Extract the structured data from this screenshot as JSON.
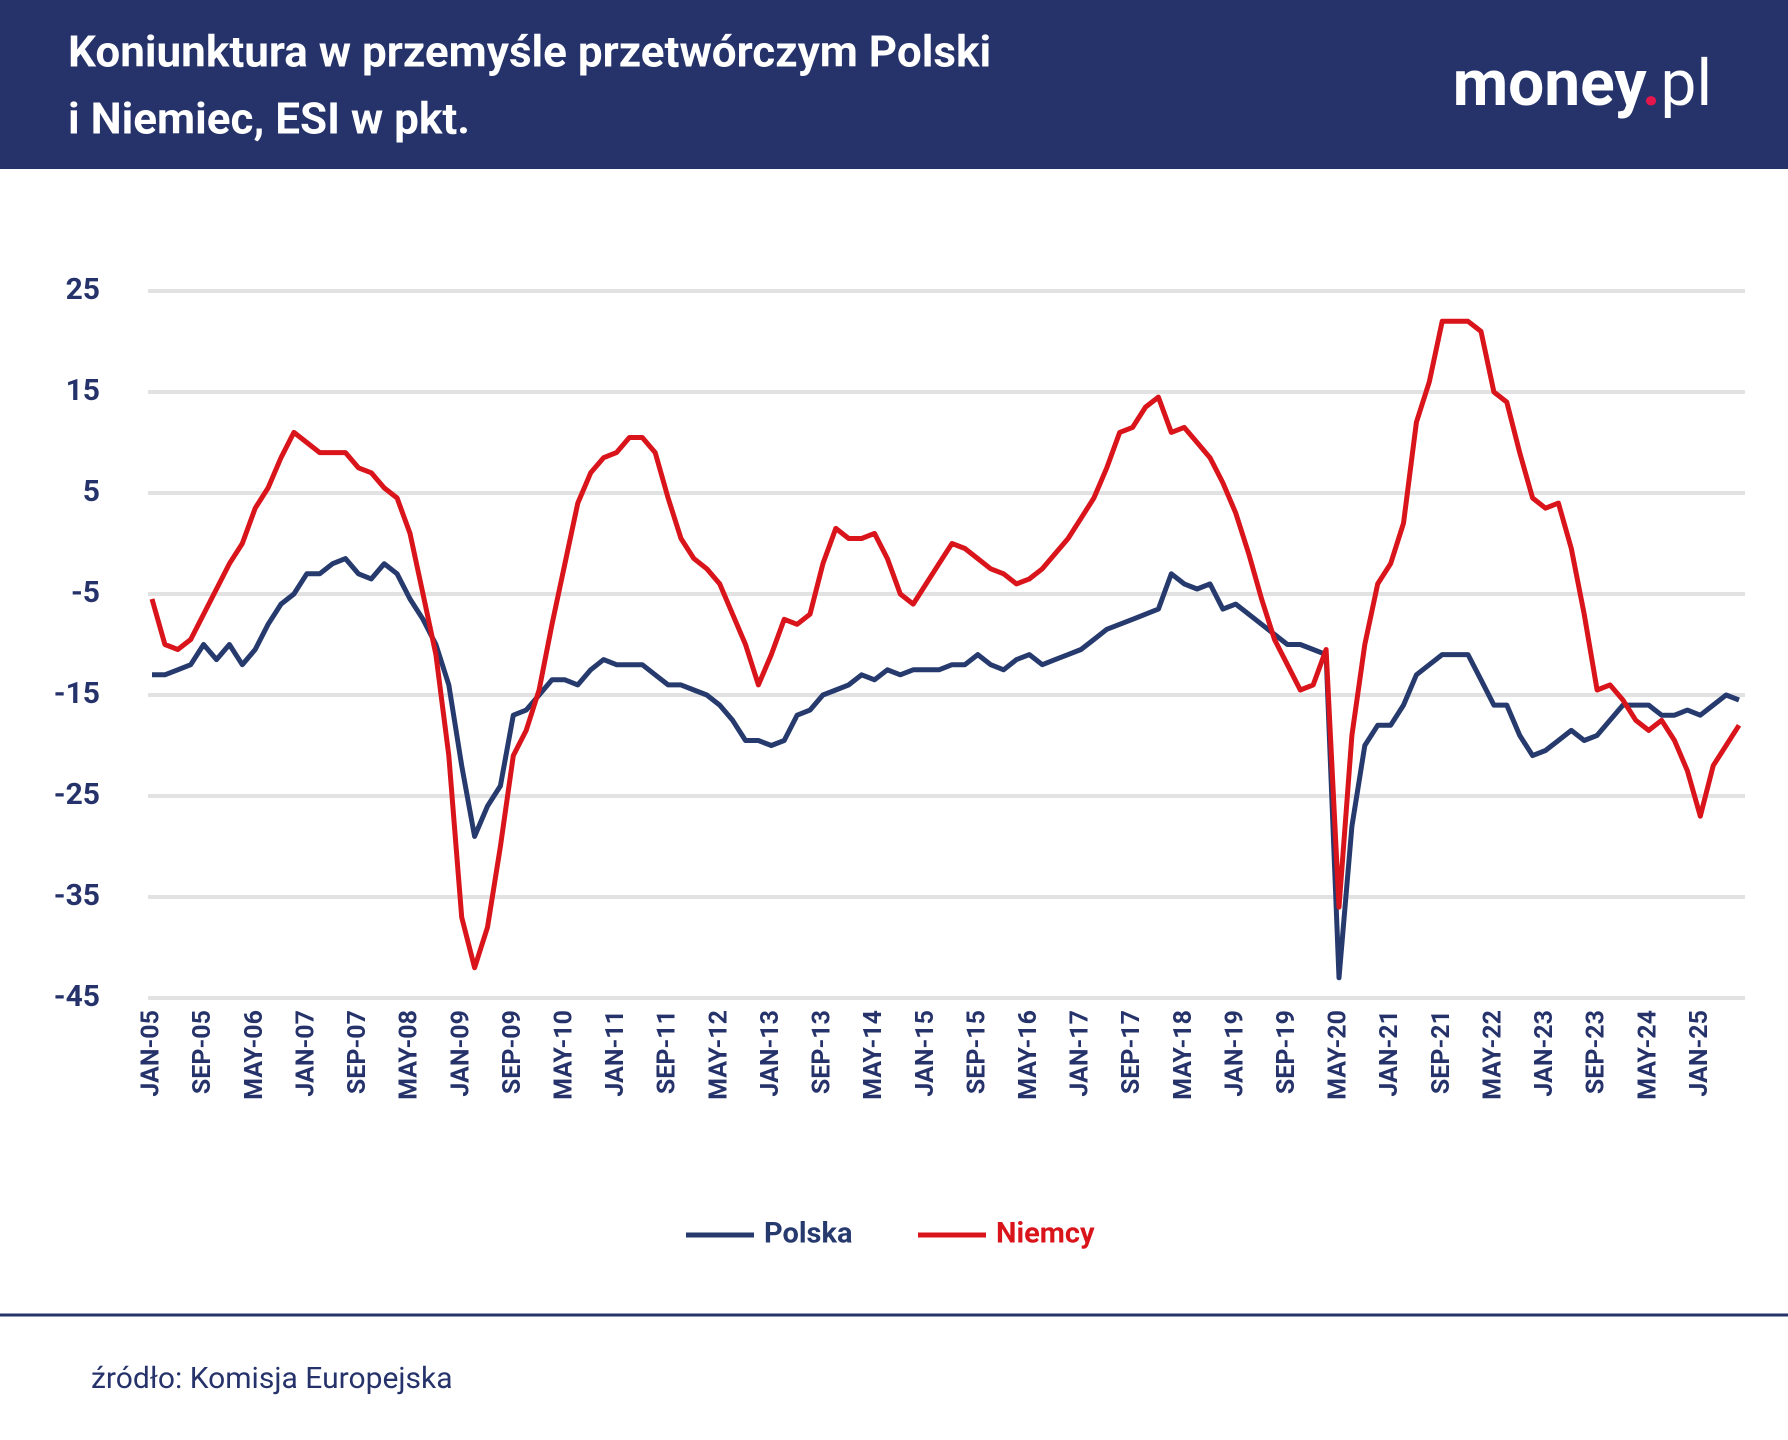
{
  "chart_data": {
    "type": "line",
    "title": [
      "Koniunktura w przemyśle przetwórczym Polski",
      "i Niemiec, ESI w pkt."
    ],
    "logo": [
      "money",
      ".",
      "pl"
    ],
    "source": "źródło: Komisja Europejska",
    "categories": [
      "JAN-05",
      null,
      null,
      null,
      "SEP-05",
      null,
      null,
      null,
      "MAY-06",
      null,
      null,
      null,
      "JAN-07",
      null,
      null,
      null,
      "SEP-07",
      null,
      null,
      null,
      "MAY-08",
      null,
      null,
      null,
      "JAN-09",
      null,
      null,
      null,
      "SEP-09",
      null,
      null,
      null,
      "MAY-10",
      null,
      null,
      null,
      "JAN-11",
      null,
      null,
      null,
      "SEP-11",
      null,
      null,
      null,
      "MAY-12",
      null,
      null,
      null,
      "JAN-13",
      null,
      null,
      null,
      "SEP-13",
      null,
      null,
      null,
      "MAY-14",
      null,
      null,
      null,
      "JAN-15",
      null,
      null,
      null,
      "SEP-15",
      null,
      null,
      null,
      "MAY-16",
      null,
      null,
      null,
      "JAN-17",
      null,
      null,
      null,
      "SEP-17",
      null,
      null,
      null,
      "MAY-18",
      null,
      null,
      null,
      "JAN-19",
      null,
      null,
      null,
      "SEP-19",
      null,
      null,
      null,
      "MAY-20",
      null,
      null,
      null,
      "JAN-21",
      null,
      null,
      null,
      "SEP-21",
      null,
      null,
      null,
      "MAY-22",
      null,
      null,
      null,
      "JAN-23",
      null,
      null,
      null,
      "SEP-23",
      null,
      null,
      null,
      "MAY-24",
      null,
      null,
      null,
      "JAN-25",
      null,
      null,
      null
    ],
    "series": [
      {
        "name": "Polska",
        "color": "#263a6e",
        "values": [
          -13,
          -13,
          -12.5,
          -12,
          -10,
          -11.5,
          -10,
          -12,
          -10.5,
          -8,
          -6,
          -5,
          -3,
          -3,
          -2,
          -1.5,
          -3,
          -3.5,
          -2,
          -3,
          -5.5,
          -7.5,
          -10,
          -14,
          -22,
          -29,
          -26,
          -24,
          -17,
          -16.5,
          -15,
          -13.5,
          -13.5,
          -14,
          -12.5,
          -11.5,
          -12,
          -12,
          -12,
          -13,
          -14,
          -14,
          -14.5,
          -15,
          -16,
          -17.5,
          -19.5,
          -19.5,
          -20,
          -19.5,
          -17,
          -16.5,
          -15,
          -14.5,
          -14,
          -13,
          -13.5,
          -12.5,
          -13,
          -12.5,
          -12.5,
          -12.5,
          -12,
          -12,
          -11,
          -12,
          -12.5,
          -11.5,
          -11,
          -12,
          -11.5,
          -11,
          -10.5,
          -9.5,
          -8.5,
          -8,
          -7.5,
          -7,
          -6.5,
          -3,
          -4,
          -4.5,
          -4,
          -6.5,
          -6,
          -7,
          -8,
          -9,
          -10,
          -10,
          -10.5,
          -11,
          -43,
          -28,
          -20,
          -18,
          -18,
          -16,
          -13,
          -12,
          -11,
          -11,
          -11,
          -13.5,
          -16,
          -16,
          -19,
          -21,
          -20.5,
          -19.5,
          -18.5,
          -19.5,
          -19,
          -17.5,
          -16,
          -16,
          -16,
          -17,
          -17,
          -16.5,
          -17,
          -16,
          -15,
          -15.5
        ]
      },
      {
        "name": "Niemcy",
        "color": "#d9141b",
        "values": [
          -5.5,
          -10,
          -10.5,
          -9.5,
          -7,
          -4.5,
          -2,
          0,
          3.5,
          5.5,
          8.5,
          11,
          10,
          9,
          9,
          9,
          7.5,
          7,
          5.5,
          4.5,
          1,
          -5,
          -11,
          -21,
          -37,
          -42,
          -38,
          -30,
          -21,
          -18.5,
          -14.5,
          -8,
          -2,
          4,
          7,
          8.5,
          9,
          10.5,
          10.5,
          9,
          4.5,
          0.5,
          -1.5,
          -2.5,
          -4,
          -7,
          -10,
          -14,
          -11,
          -7.5,
          -8,
          -7,
          -2,
          1.5,
          0.5,
          0.5,
          1,
          -1.5,
          -5,
          -6,
          -4,
          -2,
          0,
          -0.5,
          -1.5,
          -2.5,
          -3,
          -4,
          -3.5,
          -2.5,
          -1,
          0.5,
          2.5,
          4.5,
          7.5,
          11,
          11.5,
          13.5,
          14.5,
          11,
          11.5,
          10,
          8.5,
          6,
          3,
          -1,
          -5.5,
          -9.5,
          -12,
          -14.5,
          -14,
          -10.5,
          -36,
          -19,
          -10,
          -4,
          -2,
          2,
          12,
          16,
          22,
          22,
          22,
          21,
          15,
          14,
          9,
          4.5,
          3.5,
          4,
          -0.5,
          -7,
          -14.5,
          -14,
          -15.5,
          -17.5,
          -18.5,
          -17.5,
          -19.5,
          -22.5,
          -27,
          -22,
          -20,
          -18
        ]
      }
    ],
    "ylim": [
      -45,
      25
    ],
    "yticks": [
      25,
      15,
      5,
      -5,
      -15,
      -25,
      -35,
      -45
    ],
    "grid": true
  }
}
